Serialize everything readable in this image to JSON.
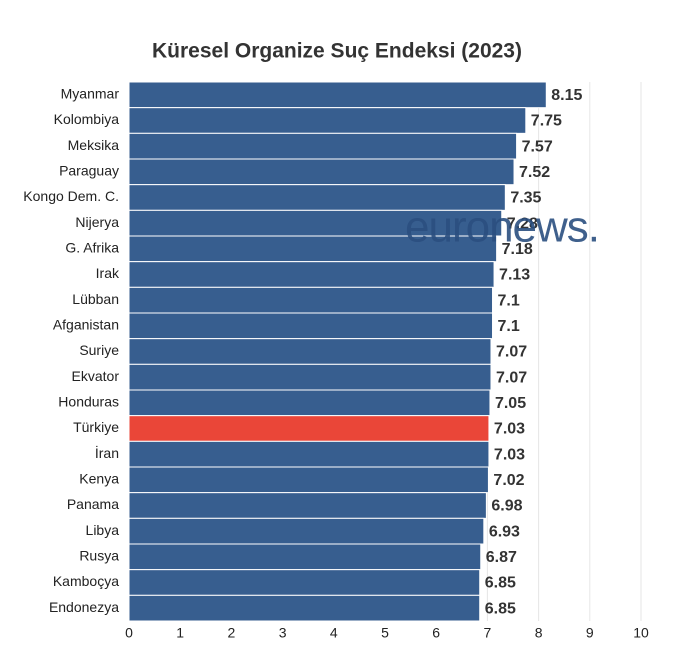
{
  "chart_data": {
    "type": "barh",
    "title": "Küresel Organize Suç Endeksi (2023)",
    "categories": [
      "Myanmar",
      "Kolombiya",
      "Meksika",
      "Paraguay",
      "Kongo Dem. C.",
      "Nijerya",
      "G. Afrika",
      "Irak",
      "Lübban",
      "Afganistan",
      "Suriye",
      "Ekvator",
      "Honduras",
      "Türkiye",
      "İran",
      "Kenya",
      "Panama",
      "Libya",
      "Rusya",
      "Kamboçya",
      "Endonezya"
    ],
    "values": [
      8.15,
      7.75,
      7.57,
      7.52,
      7.35,
      7.28,
      7.18,
      7.13,
      7.1,
      7.1,
      7.07,
      7.07,
      7.05,
      7.03,
      7.03,
      7.02,
      6.98,
      6.93,
      6.87,
      6.85,
      6.85
    ],
    "color": "#375e8f",
    "highlight": "Türkiye",
    "highlight_color": "#ea4638",
    "xlim": [
      0,
      10
    ],
    "xticks": [
      0,
      1,
      2,
      3,
      4,
      5,
      6,
      7,
      8,
      9,
      10
    ],
    "grid": true,
    "watermark": "euronews."
  }
}
